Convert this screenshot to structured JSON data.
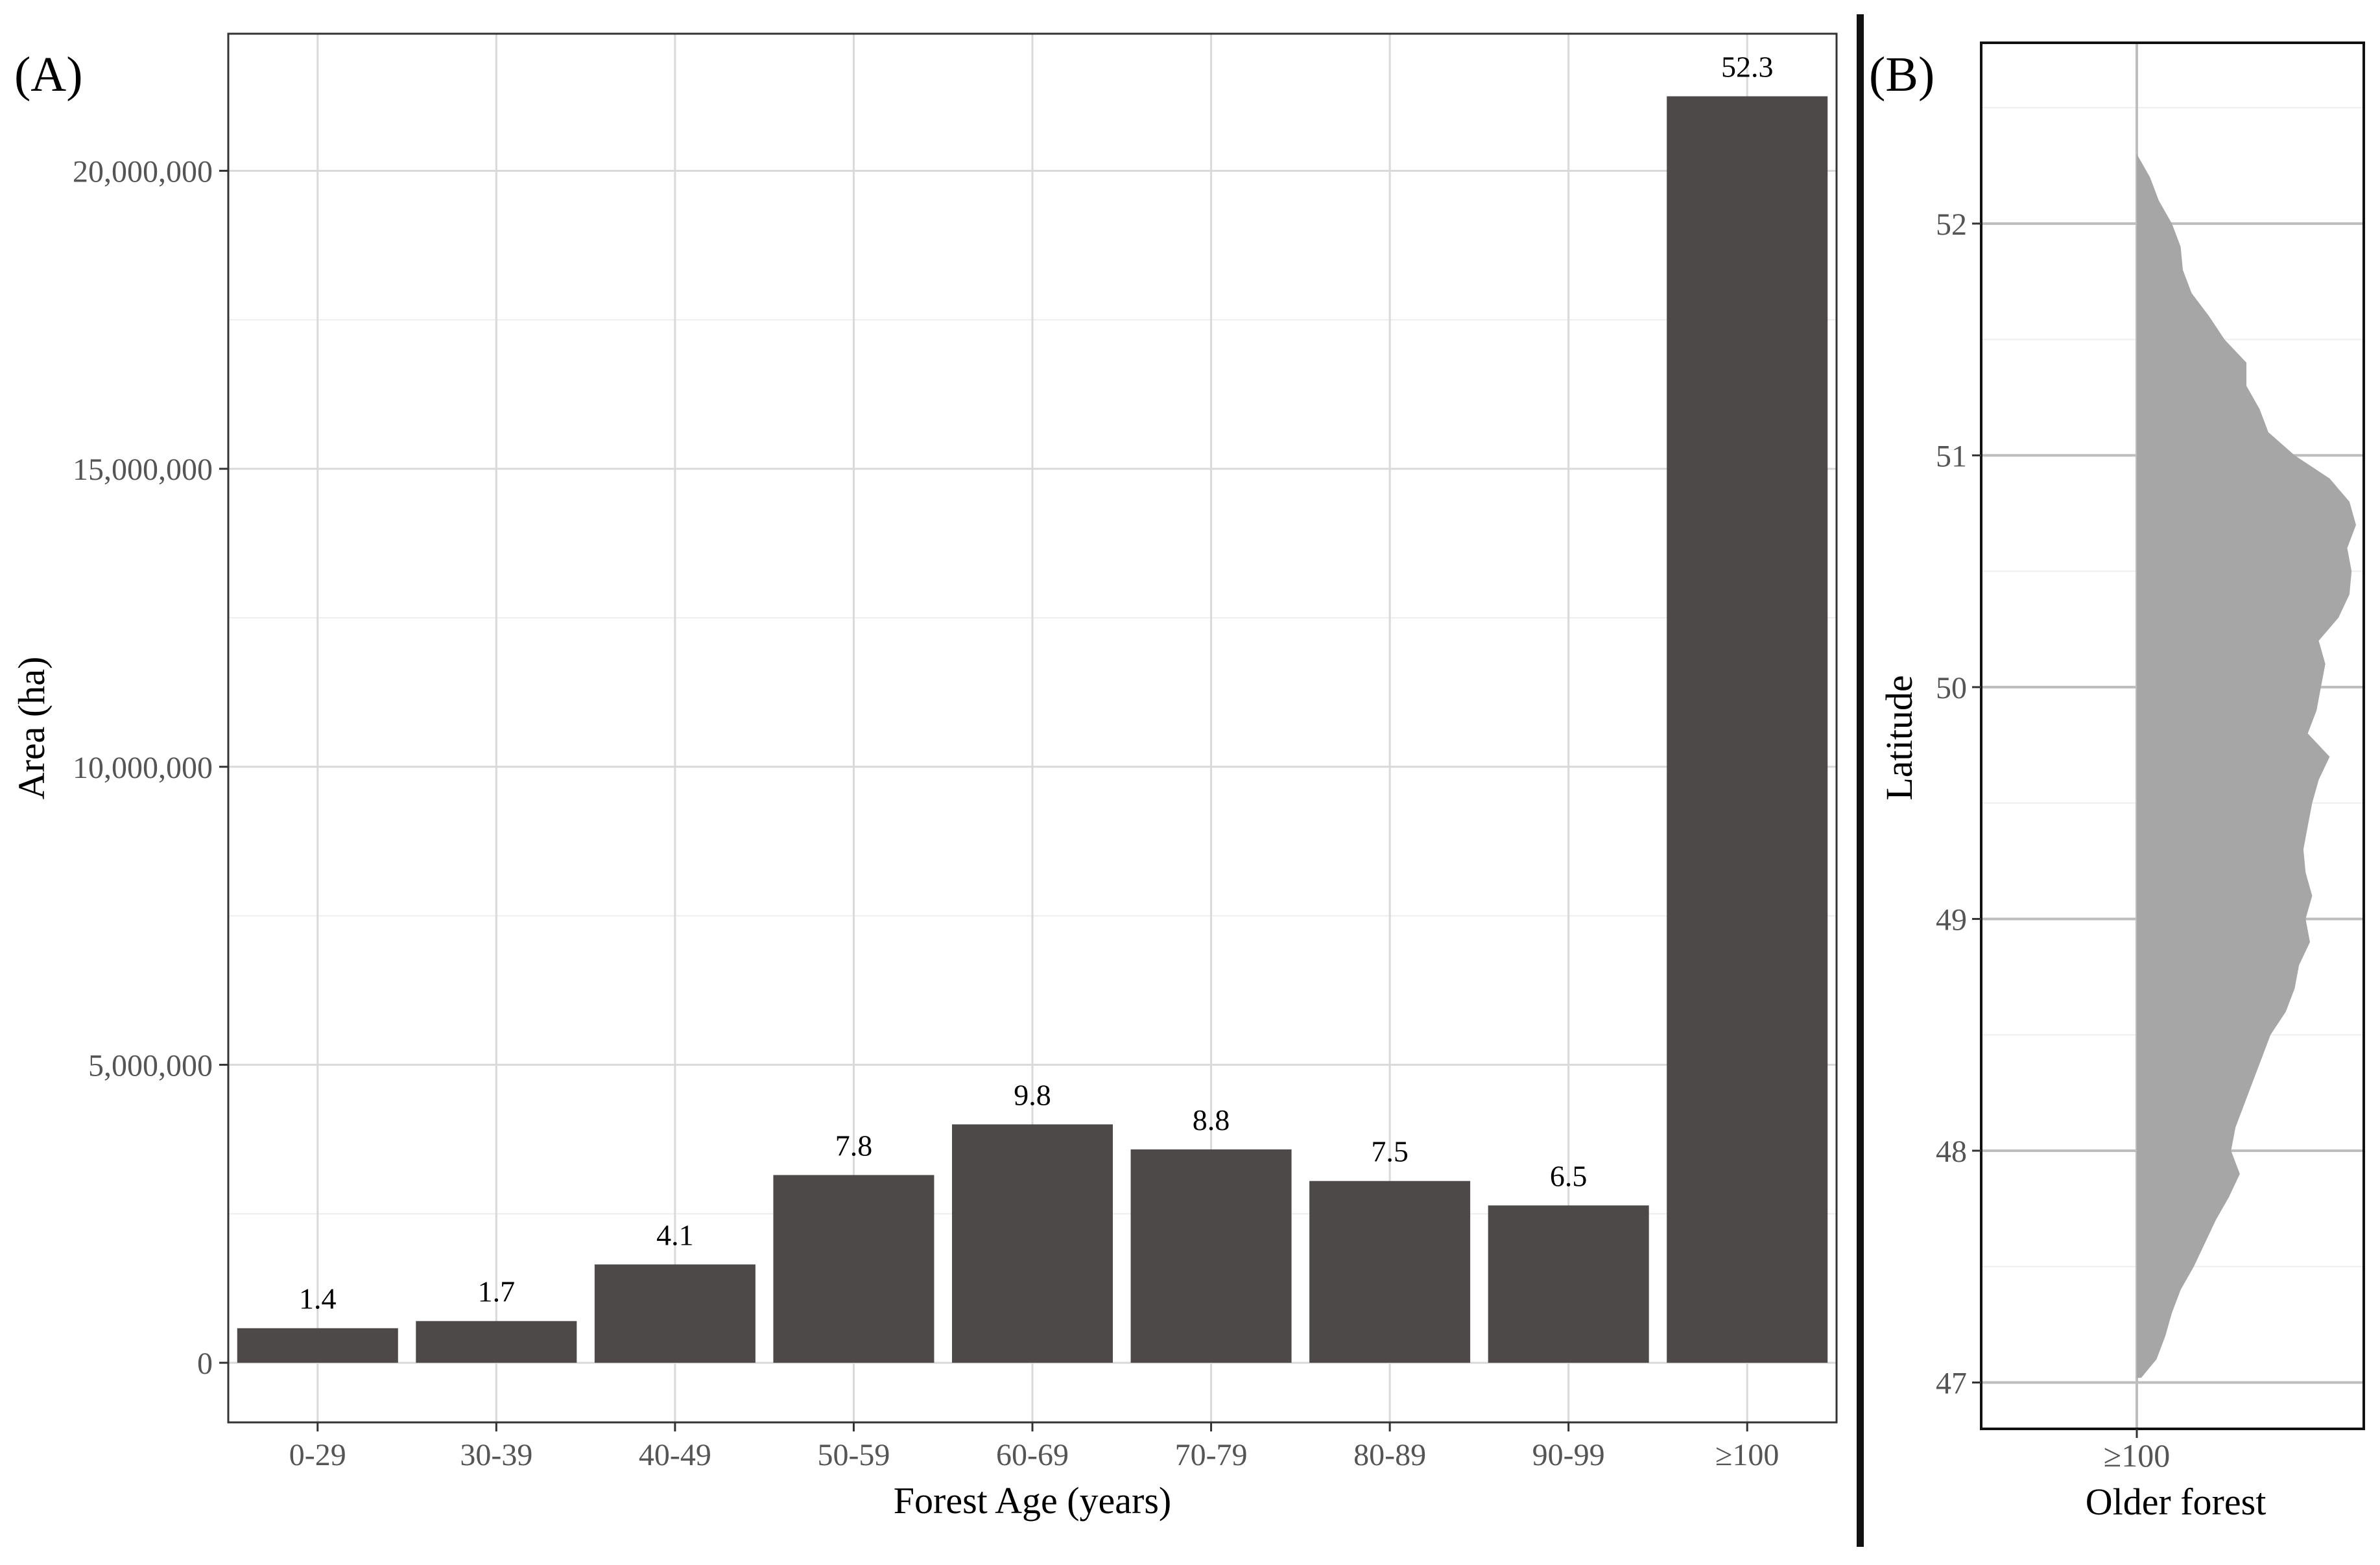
{
  "panel_a": {
    "label": "(A)",
    "xlabel": "Forest Age (years)",
    "ylabel": "Area (ha)"
  },
  "panel_b": {
    "label": "(B)",
    "xlabel": "Older forest",
    "ylabel": "Latitude",
    "x_tick": "≥100"
  },
  "colors": {
    "bar": "#4d4948",
    "violin": "#a6a6a6",
    "grid_major": "#d9d9d9",
    "grid_minor": "#eeeeee",
    "axis": "#333333",
    "divider": "#111111"
  },
  "chart_data": [
    {
      "type": "bar",
      "panel": "A",
      "categories": [
        "0-29",
        "30-39",
        "40-49",
        "50-59",
        "60-69",
        "70-79",
        "80-89",
        "90-99",
        "≥100"
      ],
      "values": [
        580000,
        700000,
        1650000,
        3150000,
        4000000,
        3580000,
        3050000,
        2640000,
        21250000
      ],
      "data_labels": [
        "1.4",
        "1.7",
        "4.1",
        "7.8",
        "9.8",
        "8.8",
        "7.5",
        "6.5",
        "52.3"
      ],
      "yticks": [
        0,
        5000000,
        10000000,
        15000000,
        20000000
      ],
      "ytick_labels": [
        "0",
        "5,000,000",
        "10,000,000",
        "15,000,000",
        "20,000,000"
      ],
      "ylim": [
        -1000000,
        22300000
      ],
      "grid": true,
      "legend": "none"
    },
    {
      "type": "area",
      "subtype": "violin",
      "panel": "B",
      "category": "≥100",
      "yticks": [
        47,
        48,
        49,
        50,
        51,
        52
      ],
      "ytick_labels": [
        "47",
        "48",
        "49",
        "50",
        "51",
        "52"
      ],
      "ylim": [
        46.8,
        52.78
      ],
      "density_units": "relative half-width (max = 1)",
      "latitude": [
        47.02,
        47.1,
        47.2,
        47.3,
        47.4,
        47.5,
        47.6,
        47.7,
        47.8,
        47.9,
        48.0,
        48.1,
        48.2,
        48.3,
        48.4,
        48.5,
        48.6,
        48.7,
        48.8,
        48.9,
        49.0,
        49.1,
        49.2,
        49.3,
        49.4,
        49.5,
        49.6,
        49.7,
        49.8,
        49.9,
        50.0,
        50.1,
        50.2,
        50.3,
        50.4,
        50.5,
        50.6,
        50.7,
        50.8,
        50.9,
        51.0,
        51.1,
        51.2,
        51.3,
        51.4,
        51.5,
        51.6,
        51.7,
        51.8,
        51.9,
        52.0,
        52.1,
        52.2,
        52.3
      ],
      "density": [
        0.02,
        0.09,
        0.13,
        0.16,
        0.2,
        0.26,
        0.31,
        0.36,
        0.42,
        0.47,
        0.43,
        0.45,
        0.49,
        0.53,
        0.57,
        0.61,
        0.68,
        0.72,
        0.74,
        0.79,
        0.77,
        0.8,
        0.77,
        0.76,
        0.78,
        0.8,
        0.83,
        0.88,
        0.78,
        0.82,
        0.84,
        0.86,
        0.83,
        0.92,
        0.97,
        0.98,
        0.96,
        1.0,
        0.97,
        0.88,
        0.72,
        0.6,
        0.56,
        0.5,
        0.5,
        0.4,
        0.33,
        0.25,
        0.21,
        0.2,
        0.16,
        0.1,
        0.06,
        0.0
      ]
    }
  ]
}
